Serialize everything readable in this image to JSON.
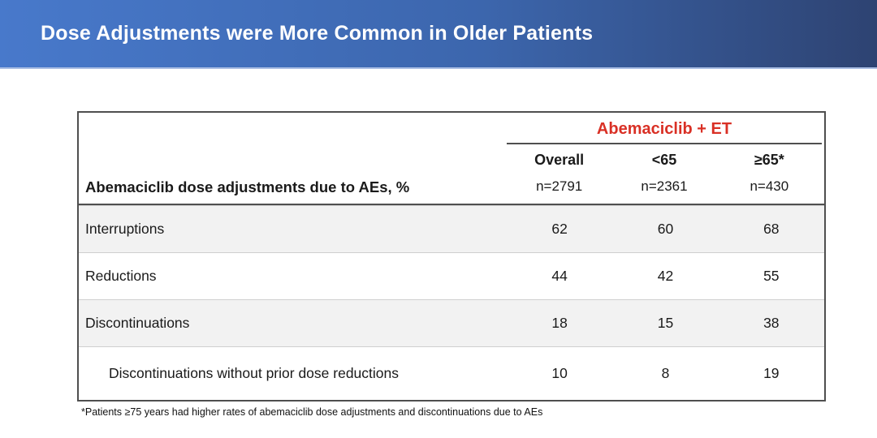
{
  "slide": {
    "title": "Dose Adjustments were More Common in Older Patients"
  },
  "table": {
    "group_header": "Abemaciclib + ET",
    "row_header": "Abemaciclib dose adjustments due to AEs, %",
    "columns": [
      {
        "label": "Overall",
        "n": "n=2791"
      },
      {
        "label": "<65",
        "n": "n=2361"
      },
      {
        "label": "≥65*",
        "n": "n=430"
      }
    ],
    "rows": [
      {
        "label": "Interruptions",
        "values": [
          "62",
          "60",
          "68"
        ]
      },
      {
        "label": "Reductions",
        "values": [
          "44",
          "42",
          "55"
        ]
      },
      {
        "label": "Discontinuations",
        "values": [
          "18",
          "15",
          "38"
        ]
      },
      {
        "label": "Discontinuations without prior dose reductions",
        "values": [
          "10",
          "8",
          "19"
        ]
      }
    ]
  },
  "footnote": "*Patients ≥75 years had higher rates of abemaciclib dose adjustments and discontinuations due to AEs",
  "colors": {
    "header_gradient_left": "#4879CB",
    "header_gradient_right": "#2E4372",
    "group_header_red": "#D93025",
    "row_alt_bg": "#F2F2F2",
    "border_dark": "#4F4F4F",
    "border_light": "#CFCFCF"
  }
}
